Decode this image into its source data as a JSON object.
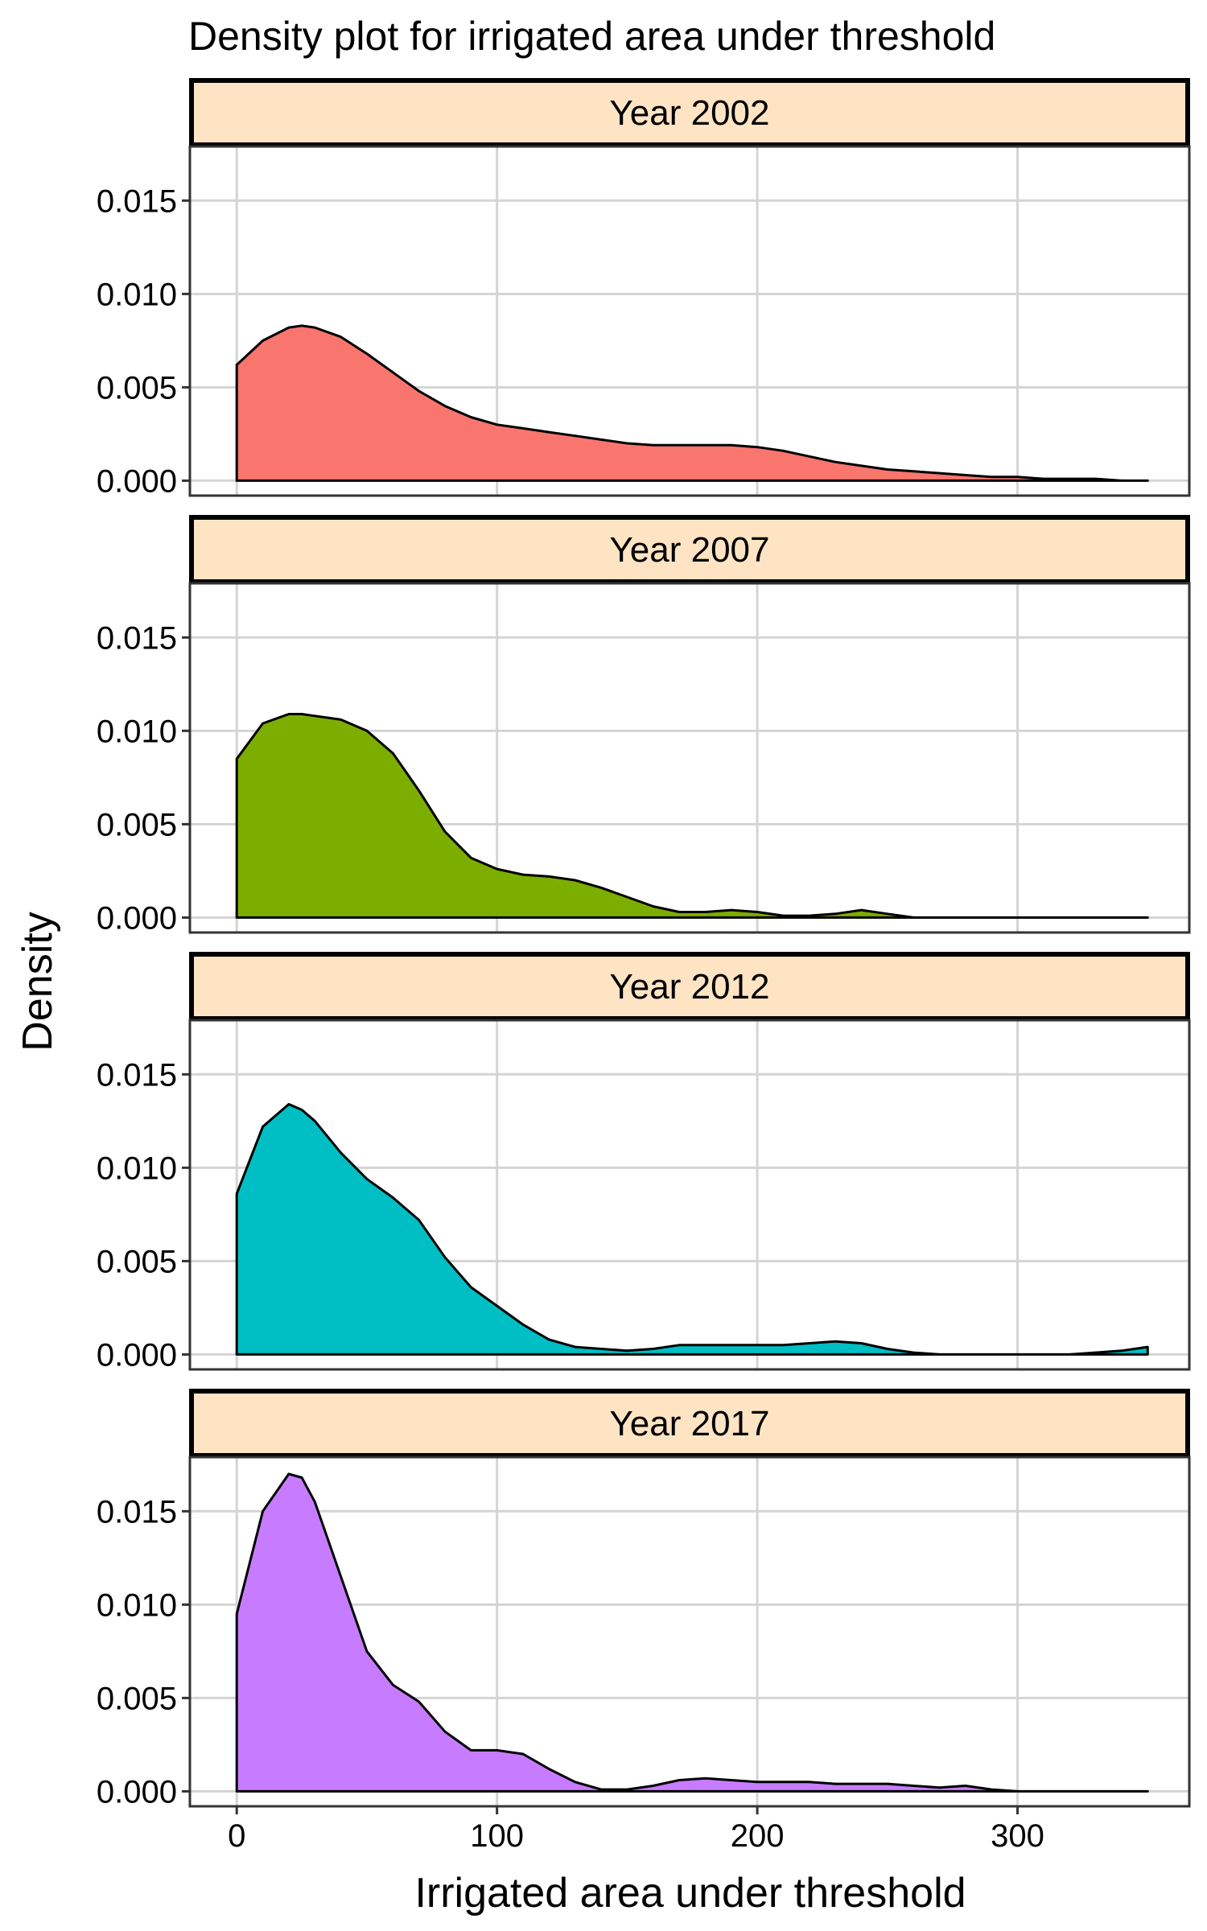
{
  "chart_data": {
    "type": "area",
    "title": "Density plot for irrigated area under threshold",
    "xlabel": "Irrigated area under threshold",
    "ylabel": "Density",
    "xlim": [
      -18,
      366
    ],
    "ylim": [
      -0.0008,
      0.0179
    ],
    "x_ticks": [
      0,
      100,
      200,
      300
    ],
    "x_tick_labels": [
      "0",
      "100",
      "200",
      "300"
    ],
    "y_ticks": [
      0,
      0.005,
      0.01,
      0.015
    ],
    "y_tick_labels": [
      "0.000",
      "0.005",
      "0.010",
      "0.015"
    ],
    "grid": true,
    "legend": "none",
    "panel_layout": "stacked vertically, shared x axis",
    "strip_color": "#ffe4c4",
    "x": [
      0,
      10,
      20,
      25,
      30,
      40,
      50,
      60,
      70,
      80,
      90,
      100,
      110,
      120,
      130,
      140,
      150,
      160,
      170,
      180,
      190,
      200,
      210,
      220,
      230,
      240,
      250,
      260,
      270,
      280,
      290,
      300,
      310,
      320,
      330,
      340,
      350
    ],
    "series": [
      {
        "name": "Year 2002",
        "color": "#f8766d",
        "values": [
          0.0062,
          0.0075,
          0.0082,
          0.0083,
          0.0082,
          0.0077,
          0.0068,
          0.0058,
          0.0048,
          0.004,
          0.0034,
          0.003,
          0.0028,
          0.0026,
          0.0024,
          0.0022,
          0.002,
          0.0019,
          0.0019,
          0.0019,
          0.0019,
          0.0018,
          0.0016,
          0.0013,
          0.001,
          0.0008,
          0.0006,
          0.0005,
          0.0004,
          0.0003,
          0.0002,
          0.0002,
          0.0001,
          0.0001,
          0.0001,
          0.0,
          0.0
        ]
      },
      {
        "name": "Year 2007",
        "color": "#7cae00",
        "values": [
          0.0085,
          0.0104,
          0.0109,
          0.0109,
          0.0108,
          0.0106,
          0.01,
          0.0088,
          0.0068,
          0.0046,
          0.0032,
          0.0026,
          0.0023,
          0.0022,
          0.002,
          0.0016,
          0.0011,
          0.0006,
          0.0003,
          0.0003,
          0.0004,
          0.0003,
          0.0001,
          0.0001,
          0.0002,
          0.0004,
          0.0002,
          0.0,
          0.0,
          0.0,
          0.0,
          0.0,
          0.0,
          0.0,
          0.0,
          0.0,
          0.0
        ]
      },
      {
        "name": "Year 2012",
        "color": "#00bfc4",
        "values": [
          0.0086,
          0.0122,
          0.0134,
          0.0131,
          0.0125,
          0.0108,
          0.0094,
          0.0084,
          0.0072,
          0.0052,
          0.0036,
          0.0026,
          0.0016,
          0.0008,
          0.0004,
          0.0003,
          0.0002,
          0.0003,
          0.0005,
          0.0005,
          0.0005,
          0.0005,
          0.0005,
          0.0006,
          0.0007,
          0.0006,
          0.0003,
          0.0001,
          0.0,
          0.0,
          0.0,
          0.0,
          0.0,
          0.0,
          0.0001,
          0.0002,
          0.0004
        ]
      },
      {
        "name": "Year 2017",
        "color": "#c77cff",
        "values": [
          0.0095,
          0.015,
          0.017,
          0.0168,
          0.0155,
          0.0115,
          0.0075,
          0.0057,
          0.0048,
          0.0032,
          0.0022,
          0.0022,
          0.002,
          0.0012,
          0.0005,
          0.0001,
          0.0001,
          0.0003,
          0.0006,
          0.0007,
          0.0006,
          0.0005,
          0.0005,
          0.0005,
          0.0004,
          0.0004,
          0.0004,
          0.0003,
          0.0002,
          0.0003,
          0.0001,
          0.0,
          0.0,
          0.0,
          0.0,
          0.0,
          0.0
        ]
      }
    ]
  }
}
